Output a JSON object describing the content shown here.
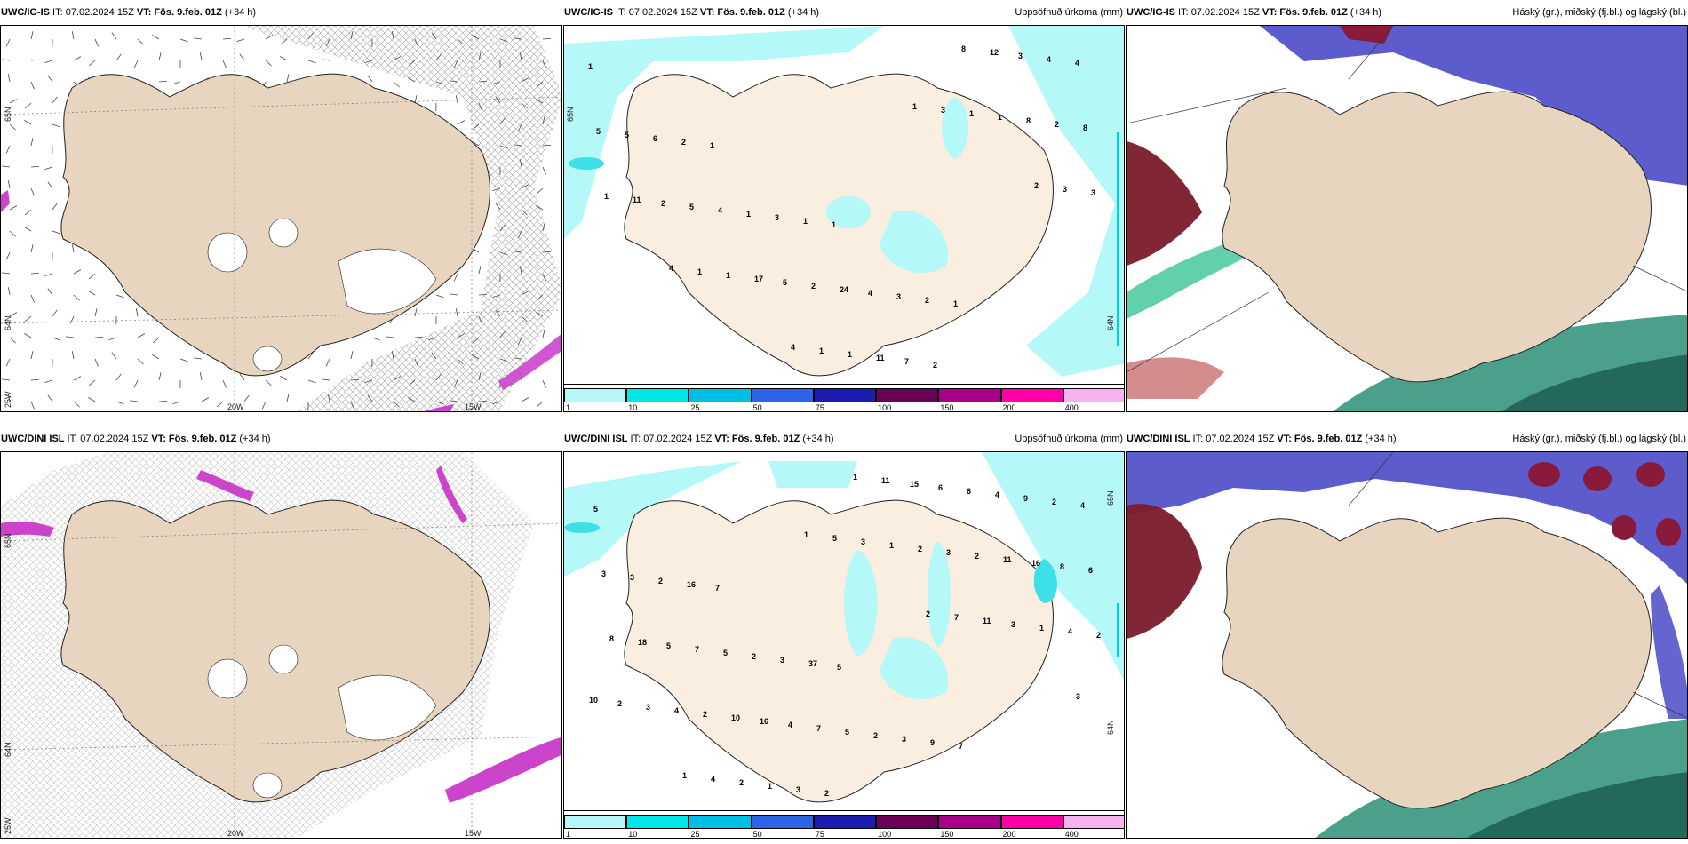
{
  "panels": [
    {
      "id": "wind-igis",
      "title_prefix": "UWC/IG-IS",
      "title_it": " IT: 07.02.2024 15Z ",
      "title_vt": "VT: Fös. 9.feb. 01Z",
      "title_suffix": " (+34 h)",
      "subtitle": "",
      "lat_labels": [
        "65N",
        "64N"
      ],
      "lon_labels": [
        "20W",
        "15W"
      ],
      "side_label": "25W"
    },
    {
      "id": "precip-igis",
      "title_prefix": "UWC/IG-IS",
      "title_it": " IT: 07.02.2024 15Z ",
      "title_vt": "VT: Fös. 9.feb. 01Z",
      "title_suffix": " (+34 h)",
      "subtitle": "Uppsöfnuð úrkoma (mm)",
      "lat_labels": [
        "65N",
        "64N"
      ],
      "values": [
        "1",
        "1",
        "1",
        "1",
        "4",
        "2",
        "1",
        "2",
        "4",
        "6",
        "3",
        "3",
        "3",
        "5",
        "1",
        "4",
        "12",
        "5",
        "4",
        "24",
        "8",
        "8",
        "5",
        "2",
        "2",
        "2",
        "2",
        "5",
        "7",
        "8",
        "11",
        "17",
        "11",
        "1",
        "1",
        "1",
        "1",
        "1",
        "3",
        "1",
        "1",
        "3",
        "3",
        "4",
        "4",
        "1",
        "2"
      ]
    },
    {
      "id": "cloud-igis",
      "title_prefix": "UWC/IG-IS",
      "title_it": " IT: 07.02.2024 15Z ",
      "title_vt": "VT: Fös. 9.feb. 01Z",
      "title_suffix": " (+34 h)",
      "subtitle": "Háský (gr.), miðský (fj.bl.) og lágský (bl.)"
    },
    {
      "id": "wind-dini",
      "title_prefix": "UWC/DINI ISL",
      "title_it": " IT: 07.02.2024 15Z ",
      "title_vt": "VT: Fös. 9.feb. 01Z",
      "title_suffix": " (+34 h)",
      "subtitle": "",
      "lat_labels": [
        "65N",
        "64N"
      ],
      "lon_labels": [
        "20W",
        "15W"
      ],
      "side_label": "25W"
    },
    {
      "id": "precip-dini",
      "title_prefix": "UWC/DINI ISL",
      "title_it": " IT: 07.02.2024 15Z ",
      "title_vt": "VT: Fös. 9.feb. 01Z",
      "title_suffix": " (+34 h)",
      "subtitle": "Uppsöfnuð úrkoma (mm)",
      "lat_labels": [
        "65N",
        "64N"
      ],
      "values": [
        "5",
        "7",
        "5",
        "7",
        "4",
        "16",
        "37",
        "9",
        "2",
        "2",
        "3",
        "3",
        "9",
        "3",
        "2",
        "2",
        "4",
        "3",
        "5",
        "5",
        "6",
        "6",
        "7",
        "7",
        "6",
        "8",
        "5",
        "4",
        "15",
        "16",
        "18",
        "16",
        "11",
        "11",
        "8",
        "10",
        "1",
        "2",
        "2",
        "2",
        "2",
        "3",
        "4",
        "4",
        "3",
        "2",
        "1",
        "3",
        "1",
        "1",
        "3",
        "2",
        "2",
        "3",
        "11",
        "10",
        "4",
        "5",
        "7",
        "3",
        "1",
        "1",
        "2"
      ]
    },
    {
      "id": "cloud-dini",
      "title_prefix": "UWC/DINI ISL",
      "title_it": " IT: 07.02.2024 15Z ",
      "title_vt": "VT: Fös. 9.feb. 01Z",
      "title_suffix": " (+34 h)",
      "subtitle": "Háský (gr.), miðský (fj.bl.) og lágský (bl.)"
    }
  ],
  "colorbar": {
    "ticks": [
      "1",
      "10",
      "25",
      "50",
      "75",
      "100",
      "150",
      "200",
      "400"
    ],
    "colors": [
      "#b8f7f7",
      "#00e6e6",
      "#00bfe6",
      "#2e64e6",
      "#1c1cb0",
      "#6b0054",
      "#a8008a",
      "#ff00a8",
      "#f5b4f0"
    ]
  },
  "colors": {
    "land": "#e8d5bf",
    "land_light": "#faeee0",
    "precip_light": "#b5f8f8",
    "precip_mid": "#3ee0e8",
    "high_cloud": "#4a4ac8",
    "low_cloud": "#2a8f76",
    "mid_cloud": "#7a1a2a",
    "wind_magenta": "#cc44cc"
  }
}
